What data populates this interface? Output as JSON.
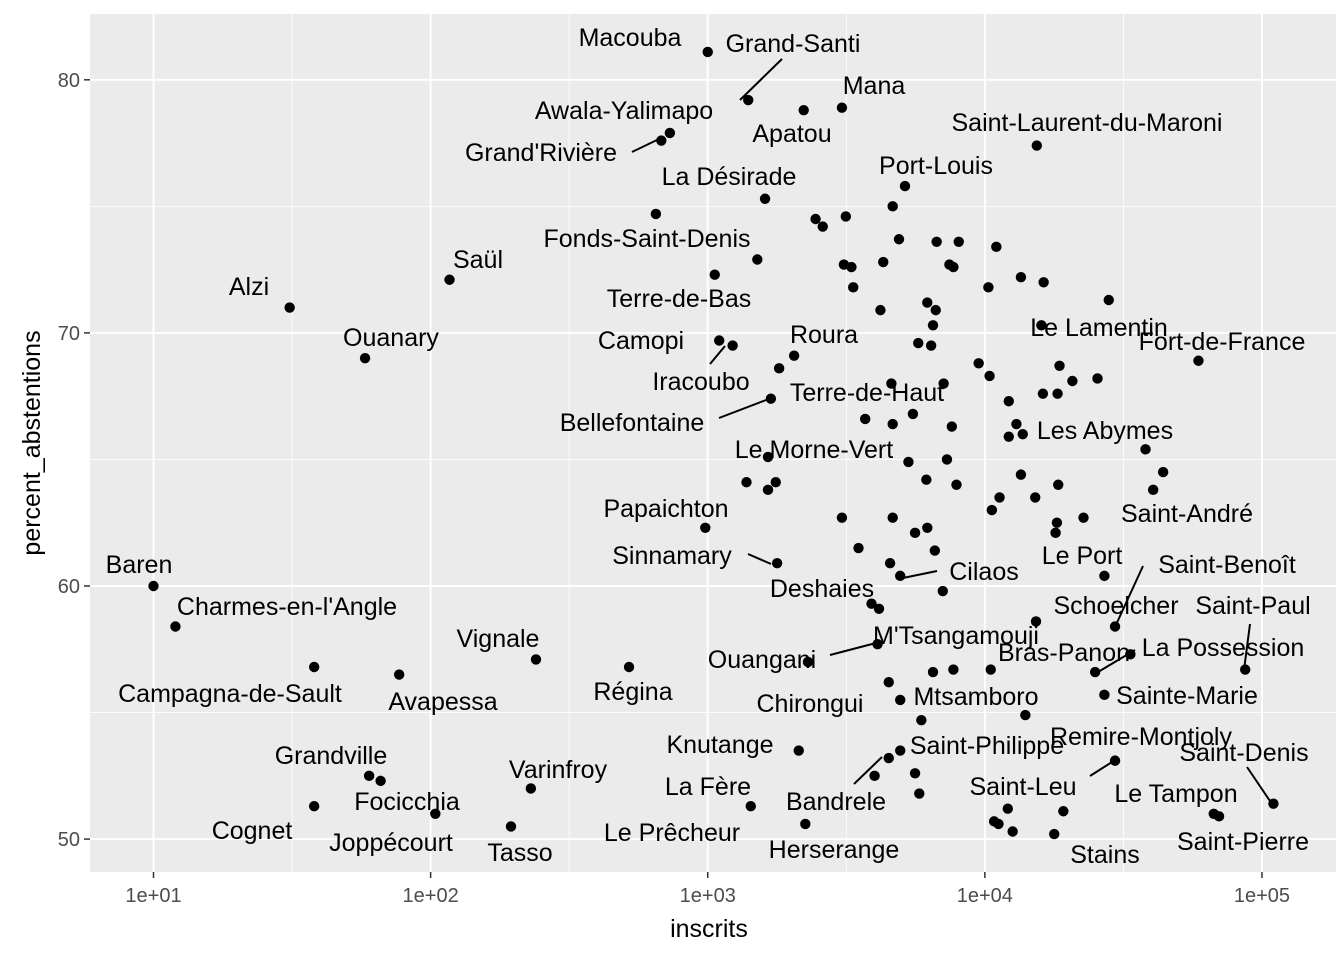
{
  "chart_data": {
    "type": "scatter",
    "title": "",
    "xlabel": "inscrits",
    "ylabel": "percent_abstentions",
    "x_scale": "log10",
    "xlim": [
      5.9,
      185000
    ],
    "ylim": [
      48.7,
      82.6
    ],
    "x_ticks": [
      {
        "value": 10,
        "label": "1e+01"
      },
      {
        "value": 100,
        "label": "1e+02"
      },
      {
        "value": 1000,
        "label": "1e+03"
      },
      {
        "value": 10000,
        "label": "1e+04"
      },
      {
        "value": 100000,
        "label": "1e+05"
      }
    ],
    "y_ticks": [
      {
        "value": 50,
        "label": "50"
      },
      {
        "value": 60,
        "label": "60"
      },
      {
        "value": 70,
        "label": "70"
      },
      {
        "value": 80,
        "label": "80"
      }
    ],
    "grid": true,
    "background": "#ebebeb",
    "point_color": "#000000",
    "labeled_points": [
      {
        "name": "Macouba",
        "x": 1000,
        "y": 81.1
      },
      {
        "name": "Grand-Santi",
        "x": 1400,
        "y": 79.2
      },
      {
        "name": "Mana",
        "x": 3050,
        "y": 78.9
      },
      {
        "name": "Awala-Yalimapo",
        "x": 730,
        "y": 77.9
      },
      {
        "name": "Apatou",
        "x": 2220,
        "y": 78.8
      },
      {
        "name": "Grand'Rivière",
        "x": 680,
        "y": 77.6
      },
      {
        "name": "Saint-Laurent-du-Maroni",
        "x": 15400,
        "y": 77.4
      },
      {
        "name": "La Désirade",
        "x": 1610,
        "y": 75.3
      },
      {
        "name": "Port-Louis",
        "x": 5150,
        "y": 75.8
      },
      {
        "name": "Fonds-Saint-Denis",
        "x": 1510,
        "y": 72.9
      },
      {
        "name": "Saül",
        "x": 117,
        "y": 72.1
      },
      {
        "name": "Alzi",
        "x": 31,
        "y": 71.0
      },
      {
        "name": "Terre-de-Bas",
        "x": 1060,
        "y": 72.3
      },
      {
        "name": "Ouanary",
        "x": 58,
        "y": 69.0
      },
      {
        "name": "Camopi",
        "x": 1100,
        "y": 69.7
      },
      {
        "name": "Roura",
        "x": 2050,
        "y": 69.1
      },
      {
        "name": "Le Lamentin",
        "x": 16000,
        "y": 70.3
      },
      {
        "name": "Fort-de-France",
        "x": 59000,
        "y": 68.9
      },
      {
        "name": "Iracoubo",
        "x": 1230,
        "y": 69.5
      },
      {
        "name": "Terre-de-Haut",
        "x": 1810,
        "y": 68.6
      },
      {
        "name": "Bellefontaine",
        "x": 1690,
        "y": 67.4
      },
      {
        "name": "Les Abymes",
        "x": 13000,
        "y": 66.4
      },
      {
        "name": "Le Morne-Vert",
        "x": 1650,
        "y": 65.1
      },
      {
        "name": "Papaichton",
        "x": 980,
        "y": 62.3
      },
      {
        "name": "Saint-André",
        "x": 38000,
        "y": 65.4
      },
      {
        "name": "Baren",
        "x": 10,
        "y": 60.0
      },
      {
        "name": "Sinnamary",
        "x": 1780,
        "y": 60.9
      },
      {
        "name": "Le Port",
        "x": 27000,
        "y": 60.4
      },
      {
        "name": "Cilaos",
        "x": 4950,
        "y": 60.4
      },
      {
        "name": "Deshaies",
        "x": 4150,
        "y": 59.1
      },
      {
        "name": "Saint-Benoît",
        "x": 29500,
        "y": 58.4
      },
      {
        "name": "Charmes-en-l'Angle",
        "x": 12,
        "y": 58.4
      },
      {
        "name": "Schoelcher",
        "x": 15300,
        "y": 58.6
      },
      {
        "name": "Saint-Paul",
        "x": 87000,
        "y": 56.7
      },
      {
        "name": "M'Tsangamouji",
        "x": 4100,
        "y": 57.7
      },
      {
        "name": "Vignale",
        "x": 240,
        "y": 57.1
      },
      {
        "name": "Ouangani",
        "x": 2300,
        "y": 57.0
      },
      {
        "name": "Bras-Panon",
        "x": 25000,
        "y": 56.6
      },
      {
        "name": "La Possession",
        "x": 33500,
        "y": 57.3
      },
      {
        "name": "Campagna-de-Sault",
        "x": 38,
        "y": 56.8
      },
      {
        "name": "Régina",
        "x": 520,
        "y": 56.8
      },
      {
        "name": "Avapessa",
        "x": 77,
        "y": 56.5
      },
      {
        "name": "Mtsamboro",
        "x": 4950,
        "y": 55.5
      },
      {
        "name": "Chirongui",
        "x": 4500,
        "y": 56.2
      },
      {
        "name": "Sainte-Marie",
        "x": 27000,
        "y": 55.7
      },
      {
        "name": "Remire-Montjoly",
        "x": 14000,
        "y": 54.9
      },
      {
        "name": "Knutange",
        "x": 2130,
        "y": 53.5
      },
      {
        "name": "Saint-Philippe",
        "x": 4950,
        "y": 53.5
      },
      {
        "name": "Grandville",
        "x": 60,
        "y": 52.5
      },
      {
        "name": "Varinfroy",
        "x": 230,
        "y": 52.0
      },
      {
        "name": "Saint-Denis",
        "x": 110000,
        "y": 51.4
      },
      {
        "name": "Bandrele",
        "x": 4500,
        "y": 53.2
      },
      {
        "name": "Focicchia",
        "x": 66,
        "y": 52.3
      },
      {
        "name": "La Fère",
        "x": 1430,
        "y": 51.3
      },
      {
        "name": "Saint-Leu",
        "x": 29500,
        "y": 53.1
      },
      {
        "name": "Le Tampon",
        "x": 67000,
        "y": 51.0
      },
      {
        "name": "Cognet",
        "x": 38,
        "y": 51.3
      },
      {
        "name": "Joppécourt",
        "x": 104,
        "y": 51.0
      },
      {
        "name": "Tasso",
        "x": 195,
        "y": 50.5
      },
      {
        "name": "Le Prêcheur",
        "x": 2250,
        "y": 50.6
      },
      {
        "name": "Herserange",
        "x": 4000,
        "y": 52.5
      },
      {
        "name": "Saint-Pierre",
        "x": 70000,
        "y": 50.9
      },
      {
        "name": "Stains",
        "x": 17800,
        "y": 50.2
      }
    ],
    "unlabeled_points": [
      {
        "x": 650,
        "y": 74.7
      },
      {
        "x": 2450,
        "y": 74.5
      },
      {
        "x": 2600,
        "y": 74.2
      },
      {
        "x": 3150,
        "y": 74.6
      },
      {
        "x": 4650,
        "y": 75.0
      },
      {
        "x": 4900,
        "y": 73.7
      },
      {
        "x": 6700,
        "y": 73.6
      },
      {
        "x": 8050,
        "y": 73.6
      },
      {
        "x": 11000,
        "y": 73.4
      },
      {
        "x": 3100,
        "y": 72.7
      },
      {
        "x": 3300,
        "y": 72.6
      },
      {
        "x": 4300,
        "y": 72.8
      },
      {
        "x": 7450,
        "y": 72.7
      },
      {
        "x": 7700,
        "y": 72.6
      },
      {
        "x": 10300,
        "y": 71.8
      },
      {
        "x": 13500,
        "y": 72.2
      },
      {
        "x": 16300,
        "y": 72.0
      },
      {
        "x": 28000,
        "y": 71.3
      },
      {
        "x": 3350,
        "y": 71.8
      },
      {
        "x": 4200,
        "y": 70.9
      },
      {
        "x": 6200,
        "y": 71.2
      },
      {
        "x": 6650,
        "y": 70.9
      },
      {
        "x": 6500,
        "y": 70.3
      },
      {
        "x": 5750,
        "y": 69.6
      },
      {
        "x": 6400,
        "y": 69.5
      },
      {
        "x": 9500,
        "y": 68.8
      },
      {
        "x": 10400,
        "y": 68.3
      },
      {
        "x": 4600,
        "y": 68.0
      },
      {
        "x": 7100,
        "y": 68.0
      },
      {
        "x": 18600,
        "y": 68.7
      },
      {
        "x": 16200,
        "y": 67.6
      },
      {
        "x": 18300,
        "y": 67.6
      },
      {
        "x": 20700,
        "y": 68.1
      },
      {
        "x": 25500,
        "y": 68.2
      },
      {
        "x": 12200,
        "y": 67.3
      },
      {
        "x": 3700,
        "y": 66.6
      },
      {
        "x": 4650,
        "y": 66.4
      },
      {
        "x": 5500,
        "y": 66.8
      },
      {
        "x": 7600,
        "y": 66.3
      },
      {
        "x": 12200,
        "y": 65.9
      },
      {
        "x": 13700,
        "y": 66.0
      },
      {
        "x": 5300,
        "y": 64.9
      },
      {
        "x": 7300,
        "y": 65.0
      },
      {
        "x": 6150,
        "y": 64.2
      },
      {
        "x": 7900,
        "y": 64.0
      },
      {
        "x": 1380,
        "y": 64.1
      },
      {
        "x": 1650,
        "y": 63.8
      },
      {
        "x": 1760,
        "y": 64.1
      },
      {
        "x": 13500,
        "y": 64.4
      },
      {
        "x": 18400,
        "y": 64.0
      },
      {
        "x": 40500,
        "y": 63.8
      },
      {
        "x": 44000,
        "y": 64.5
      },
      {
        "x": 10600,
        "y": 63.0
      },
      {
        "x": 11300,
        "y": 63.5
      },
      {
        "x": 15200,
        "y": 63.5
      },
      {
        "x": 3050,
        "y": 62.7
      },
      {
        "x": 4650,
        "y": 62.7
      },
      {
        "x": 18200,
        "y": 62.5
      },
      {
        "x": 22700,
        "y": 62.7
      },
      {
        "x": 5600,
        "y": 62.1
      },
      {
        "x": 6200,
        "y": 62.3
      },
      {
        "x": 18000,
        "y": 62.1
      },
      {
        "x": 3500,
        "y": 61.5
      },
      {
        "x": 6600,
        "y": 61.4
      },
      {
        "x": 4550,
        "y": 60.9
      },
      {
        "x": 7050,
        "y": 59.8
      },
      {
        "x": 3900,
        "y": 59.3
      },
      {
        "x": 6500,
        "y": 56.6
      },
      {
        "x": 7700,
        "y": 56.7
      },
      {
        "x": 10500,
        "y": 56.7
      },
      {
        "x": 5900,
        "y": 54.7
      },
      {
        "x": 5600,
        "y": 52.6
      },
      {
        "x": 5800,
        "y": 51.8
      },
      {
        "x": 12100,
        "y": 51.2
      },
      {
        "x": 19200,
        "y": 51.1
      },
      {
        "x": 10800,
        "y": 50.7
      },
      {
        "x": 11200,
        "y": 50.6
      },
      {
        "x": 12600,
        "y": 50.3
      }
    ]
  }
}
